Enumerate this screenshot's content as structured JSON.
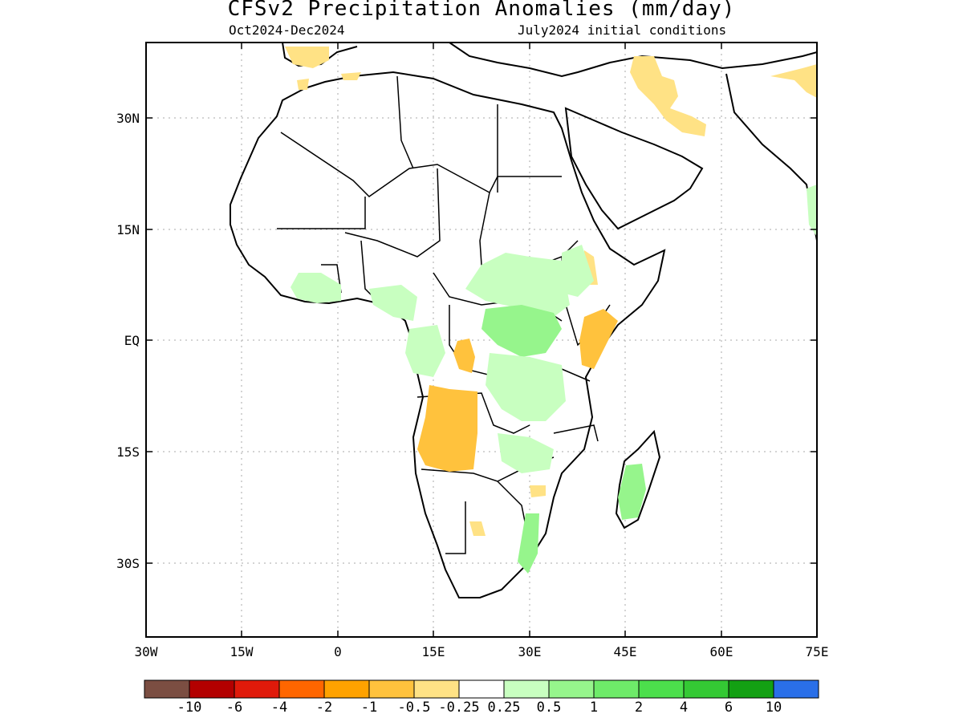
{
  "title": "CFSv2 Precipitation Anomalies (mm/day)",
  "subtitle_left": "Oct2024-Dec2024",
  "subtitle_right": "July2024 initial conditions",
  "axes": {
    "x_ticks": [
      "30W",
      "15W",
      "0",
      "15E",
      "30E",
      "45E",
      "60E",
      "75E"
    ],
    "y_ticks": [
      "30N",
      "15N",
      "EQ",
      "15S",
      "30S"
    ]
  },
  "colorbar": {
    "labels": [
      "-10",
      "-6",
      "-4",
      "-2",
      "-1",
      "-0.5",
      "-0.25",
      "0.25",
      "0.5",
      "1",
      "2",
      "4",
      "6",
      "10"
    ],
    "colors": [
      "#7b4e42",
      "#b30000",
      "#e01a0a",
      "#ff6600",
      "#ffa200",
      "#ffc23d",
      "#ffe285",
      "#ffffff",
      "#c8ffc0",
      "#96f58c",
      "#6eeb69",
      "#4cdf4c",
      "#34c934",
      "#13a013",
      "#2a6fe8"
    ]
  },
  "map": {
    "region": "Africa",
    "anomaly_colors": {
      "dry": "#ffe285",
      "drier": "#ffc23d",
      "wet": "#c8ffc0",
      "wetter": "#96f58c"
    }
  }
}
